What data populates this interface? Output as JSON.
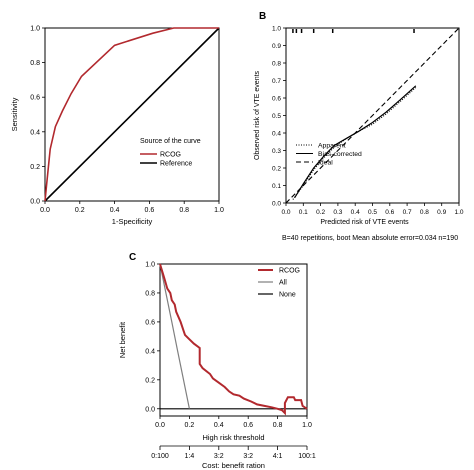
{
  "panel_labels": {
    "a": "",
    "b": "B",
    "c": "C"
  },
  "colors": {
    "rcog": "#b2292e",
    "reference": "#000000",
    "all": "#7f7f7f",
    "none": "#000000",
    "axis": "#000000"
  },
  "chart_data": [
    {
      "type": "line",
      "panel": "A",
      "title": "",
      "xlabel": "1-Specificity",
      "ylabel": "Sensitivity",
      "xlim": [
        0,
        1
      ],
      "ylim": [
        0,
        1
      ],
      "xticks": [
        "0.0",
        "0.2",
        "0.4",
        "0.6",
        "0.8",
        "1.0"
      ],
      "yticks": [
        "0.0",
        "0.2",
        "0.4",
        "0.6",
        "0.8",
        "1.0"
      ],
      "legend_title": "Source of the curve",
      "legend_position": "bottom-right",
      "series": [
        {
          "name": "RCOG",
          "color": "#b2292e",
          "x": [
            0,
            0.01,
            0.03,
            0.06,
            0.1,
            0.15,
            0.21,
            0.4,
            0.62,
            0.74,
            1.0
          ],
          "y": [
            0,
            0.1,
            0.3,
            0.43,
            0.52,
            0.62,
            0.72,
            0.9,
            0.97,
            1.0,
            1.0
          ]
        },
        {
          "name": "Reference",
          "color": "#000000",
          "x": [
            0,
            1
          ],
          "y": [
            0,
            1
          ]
        }
      ]
    },
    {
      "type": "line",
      "panel": "B",
      "title": "",
      "xlabel": "Predicted risk of VTE events",
      "ylabel": "Observed risk of VTE events",
      "xlim": [
        0,
        1
      ],
      "ylim": [
        0,
        1
      ],
      "xticks": [
        "0.0",
        "0.1",
        "0.2",
        "0.3",
        "0.4",
        "0.5",
        "0.6",
        "0.7",
        "0.8",
        "0.9",
        "1.0"
      ],
      "yticks": [
        "0.0",
        "0.1",
        "0.2",
        "0.3",
        "0.4",
        "0.5",
        "0.6",
        "0.7",
        "0.8",
        "0.9",
        "1.0"
      ],
      "legend_position": "bottom-left",
      "rug_x": [
        0.04,
        0.06,
        0.09,
        0.16,
        0.27,
        0.74
      ],
      "footnote": "B=40 repetitions, boot    Mean absolute error=0.034 n=190",
      "series": [
        {
          "name": "Apparent",
          "style": "dotted",
          "x": [
            0.04,
            0.1,
            0.16,
            0.22,
            0.28,
            0.35,
            0.42,
            0.5,
            0.58,
            0.66,
            0.75
          ],
          "y": [
            0.02,
            0.1,
            0.19,
            0.26,
            0.32,
            0.37,
            0.41,
            0.45,
            0.51,
            0.58,
            0.66
          ]
        },
        {
          "name": "Bias-corrected",
          "style": "solid",
          "x": [
            0.05,
            0.1,
            0.16,
            0.22,
            0.28,
            0.35,
            0.42,
            0.5,
            0.58,
            0.66,
            0.75
          ],
          "y": [
            0.03,
            0.11,
            0.2,
            0.27,
            0.33,
            0.37,
            0.41,
            0.46,
            0.52,
            0.59,
            0.67
          ]
        },
        {
          "name": "Ideal",
          "style": "dashed",
          "x": [
            0,
            1
          ],
          "y": [
            0,
            1
          ]
        }
      ]
    },
    {
      "type": "line",
      "panel": "C",
      "title": "",
      "xlabel": "High risk threshold",
      "ylabel": "Net benefit",
      "x2label": "Cost: benefit ration",
      "xlim": [
        0,
        1
      ],
      "ylim": [
        -0.05,
        1.0
      ],
      "xticks": [
        "0.0",
        "0.2",
        "0.4",
        "0.6",
        "0.8",
        "1.0"
      ],
      "x2ticks": [
        "0:100",
        "1:4",
        "3:2",
        "3:2",
        "4:1",
        "100:1"
      ],
      "yticks": [
        "0.0",
        "0.2",
        "0.4",
        "0.6",
        "0.8",
        "1.0"
      ],
      "legend_position": "top-right",
      "series": [
        {
          "name": "RCOG",
          "color": "#b2292e",
          "x": [
            0.0,
            0.03,
            0.05,
            0.07,
            0.08,
            0.1,
            0.11,
            0.14,
            0.16,
            0.17,
            0.2,
            0.23,
            0.27,
            0.27,
            0.29,
            0.34,
            0.36,
            0.4,
            0.44,
            0.47,
            0.5,
            0.54,
            0.57,
            0.62,
            0.66,
            0.71,
            0.76,
            0.8,
            0.83,
            0.85,
            0.85,
            0.87,
            0.87,
            0.91,
            0.92,
            0.96,
            0.97,
            1.0
          ],
          "y": [
            1.0,
            0.9,
            0.83,
            0.8,
            0.75,
            0.72,
            0.67,
            0.6,
            0.54,
            0.51,
            0.48,
            0.45,
            0.42,
            0.31,
            0.28,
            0.24,
            0.21,
            0.18,
            0.15,
            0.12,
            0.1,
            0.09,
            0.07,
            0.05,
            0.03,
            0.02,
            0.01,
            0.0,
            -0.01,
            -0.03,
            0.04,
            0.08,
            0.08,
            0.08,
            0.06,
            0.06,
            0.02,
            0.0
          ]
        },
        {
          "name": "All",
          "color": "#7f7f7f",
          "x": [
            0.0,
            0.04,
            0.08,
            0.12,
            0.16,
            0.2
          ],
          "y": [
            1.0,
            0.8,
            0.6,
            0.4,
            0.2,
            0.0
          ]
        },
        {
          "name": "None",
          "color": "#000000",
          "x": [
            0,
            1
          ],
          "y": [
            0,
            0
          ]
        }
      ]
    }
  ]
}
